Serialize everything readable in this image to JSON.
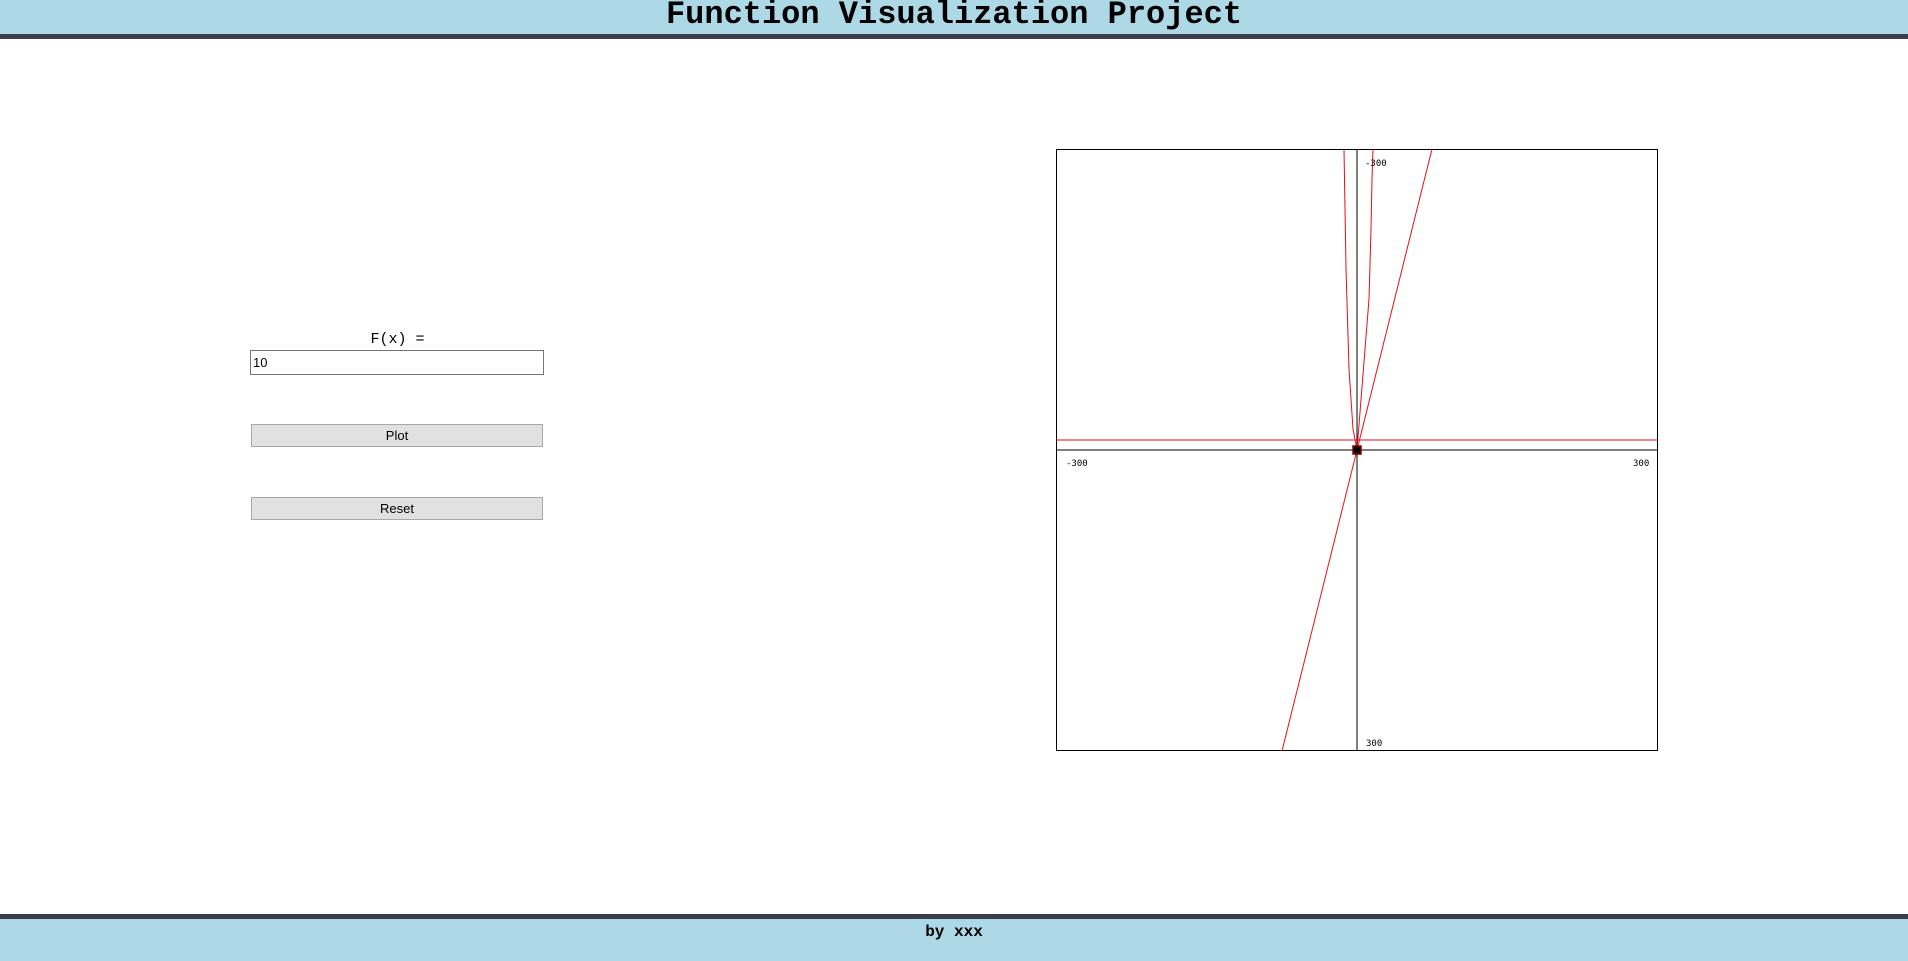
{
  "header": {
    "title": "Function Visualization Project"
  },
  "controls": {
    "fx_label": "F(x) =",
    "fx_value": "10",
    "plot_label": "Plot",
    "reset_label": "Reset"
  },
  "graph": {
    "tick_top": "-300",
    "tick_left": "-300",
    "tick_right": "300",
    "tick_bottom": "300",
    "curve_color": "#e0101e",
    "axis_color": "#000000",
    "origin_color": "#8b0000"
  },
  "footer": {
    "text": "by xxx"
  }
}
